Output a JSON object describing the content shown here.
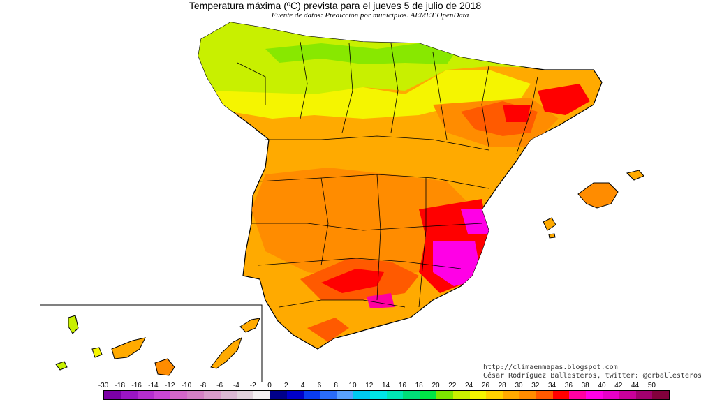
{
  "title": "Temperatura máxima (ºC) prevista para el jueves 5 de julio de 2018",
  "subtitle": "Fuente de datos: Predicción por municipios. AEMET OpenData",
  "credits": {
    "blog": "http://climaenmapas.blogspot.com",
    "author": "César Rodríguez Ballesteros, twitter: @crballesteros"
  },
  "legend": {
    "labels": [
      "-30",
      "-18",
      "-16",
      "-14",
      "-12",
      "-10",
      "-8",
      "-6",
      "-4",
      "-2",
      "0",
      "2",
      "4",
      "6",
      "8",
      "10",
      "12",
      "14",
      "16",
      "18",
      "20",
      "22",
      "24",
      "26",
      "28",
      "30",
      "32",
      "34",
      "36",
      "38",
      "40",
      "42",
      "44",
      "50"
    ],
    "colors": [
      "#7b00a6",
      "#9b15c4",
      "#b52ecf",
      "#c946d6",
      "#d466c8",
      "#d480c4",
      "#d99ccb",
      "#dcb8d4",
      "#e2d2dc",
      "#f5f0f2",
      "#00008a",
      "#0000c8",
      "#0a3cf0",
      "#2a6cf8",
      "#5aa0fc",
      "#00c8f0",
      "#00e6e6",
      "#00e6b4",
      "#00dc78",
      "#00e646",
      "#7ce600",
      "#c8f000",
      "#f5f500",
      "#ffd200",
      "#ffaa00",
      "#ff8c00",
      "#ff5a00",
      "#ff0000",
      "#ff00a0",
      "#ff00e6",
      "#e600c8",
      "#c8009b",
      "#a0006e",
      "#82003c"
    ]
  },
  "colors": {
    "orange": "#ffaa00",
    "dark_orange": "#ff8c00",
    "red_orange": "#ff5a00",
    "red": "#ff0000",
    "magenta": "#ff00e6",
    "yellow": "#f5f500",
    "yellow_green": "#c8f000",
    "border": "#000000"
  }
}
